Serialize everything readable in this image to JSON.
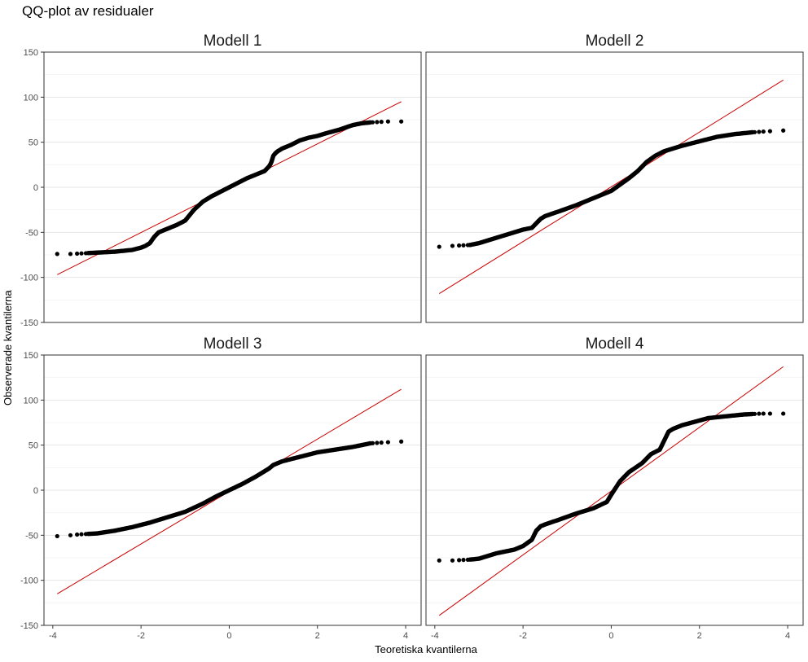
{
  "page": {
    "title": "QQ-plot av residualer",
    "xlabel": "Teoretiska kvantilerna",
    "ylabel": "Observerade kvantilerna"
  },
  "chart_data": [
    {
      "type": "scatter",
      "title": "Modell 1",
      "xlim": [
        -4.2,
        4.35
      ],
      "ylim": [
        -150,
        150
      ],
      "xticks": [
        -4,
        -2,
        0,
        2,
        4
      ],
      "yticks": [
        -150,
        -100,
        -50,
        0,
        50,
        100,
        150
      ],
      "xtick_labels": [
        "-4",
        "-2",
        "0",
        "2",
        "4"
      ],
      "ytick_labels": [
        "-150",
        "-100",
        "-50",
        "0",
        "50",
        "100",
        "150"
      ],
      "grid": true,
      "reference_line": {
        "color": "#cc0000",
        "x": [
          -3.9,
          3.9
        ],
        "y": [
          -97,
          95
        ]
      },
      "points_color": "#000000",
      "curve": {
        "x": [
          -3.9,
          -3.6,
          -3.4,
          -3.2,
          -3.0,
          -2.8,
          -2.6,
          -2.4,
          -2.2,
          -2.0,
          -1.9,
          -1.8,
          -1.7,
          -1.6,
          -1.5,
          -1.4,
          -1.3,
          -1.2,
          -1.0,
          -0.8,
          -0.6,
          -0.4,
          -0.2,
          0.0,
          0.2,
          0.4,
          0.6,
          0.8,
          0.9,
          0.95,
          1.0,
          1.05,
          1.1,
          1.2,
          1.4,
          1.6,
          1.8,
          2.0,
          2.2,
          2.5,
          2.8,
          3.0,
          3.2,
          3.4,
          3.6,
          3.9
        ],
        "y": [
          -74,
          -74,
          -73.5,
          -73,
          -72.5,
          -72,
          -71.5,
          -70.5,
          -69.5,
          -67,
          -65,
          -62,
          -55,
          -50,
          -48,
          -46,
          -44,
          -42,
          -37,
          -25,
          -16,
          -10,
          -5,
          0,
          5,
          10,
          14,
          18,
          23,
          27,
          35,
          38,
          40,
          43,
          47,
          52,
          55,
          57,
          60,
          64,
          69,
          71,
          72,
          72.5,
          73,
          73
        ]
      }
    },
    {
      "type": "scatter",
      "title": "Modell 2",
      "xlim": [
        -4.2,
        4.35
      ],
      "ylim": [
        -150,
        150
      ],
      "xticks": [
        -4,
        -2,
        0,
        2,
        4
      ],
      "yticks": [
        -150,
        -100,
        -50,
        0,
        50,
        100,
        150
      ],
      "grid": true,
      "reference_line": {
        "color": "#cc0000",
        "x": [
          -3.9,
          3.9
        ],
        "y": [
          -118,
          119
        ]
      },
      "points_color": "#000000",
      "curve": {
        "x": [
          -3.9,
          -3.6,
          -3.4,
          -3.2,
          -3.0,
          -2.8,
          -2.6,
          -2.4,
          -2.2,
          -2.0,
          -1.8,
          -1.7,
          -1.6,
          -1.5,
          -1.2,
          -0.8,
          -0.4,
          0.0,
          0.2,
          0.4,
          0.6,
          0.8,
          1.0,
          1.2,
          1.6,
          2.0,
          2.4,
          2.8,
          3.2,
          3.5,
          3.9
        ],
        "y": [
          -66,
          -65,
          -64.5,
          -64,
          -62,
          -59,
          -56,
          -53,
          -50,
          -47,
          -45,
          -40,
          -35,
          -32,
          -27,
          -20,
          -12,
          -4,
          3,
          10,
          18,
          28,
          35,
          40,
          46,
          51,
          56,
          59,
          61,
          62,
          63
        ]
      }
    },
    {
      "type": "scatter",
      "title": "Modell 3",
      "xlim": [
        -4.2,
        4.35
      ],
      "ylim": [
        -150,
        150
      ],
      "xticks": [
        -4,
        -2,
        0,
        2,
        4
      ],
      "yticks": [
        -150,
        -100,
        -50,
        0,
        50,
        100,
        150
      ],
      "grid": true,
      "reference_line": {
        "color": "#cc0000",
        "x": [
          -3.9,
          3.9
        ],
        "y": [
          -115,
          112
        ]
      },
      "points_color": "#000000",
      "curve": {
        "x": [
          -3.9,
          -3.6,
          -3.4,
          -3.2,
          -3.0,
          -2.6,
          -2.2,
          -1.8,
          -1.4,
          -1.0,
          -0.6,
          -0.3,
          0.0,
          0.3,
          0.6,
          0.9,
          1.0,
          1.2,
          1.6,
          2.0,
          2.4,
          2.8,
          3.2,
          3.5,
          3.9
        ],
        "y": [
          -51,
          -50,
          -49,
          -48.5,
          -48,
          -45,
          -41,
          -36,
          -30,
          -24,
          -15,
          -7,
          0,
          7,
          15,
          24,
          28,
          32,
          37,
          42,
          45,
          48,
          52,
          53,
          54
        ]
      }
    },
    {
      "type": "scatter",
      "title": "Modell 4",
      "xlim": [
        -4.2,
        4.35
      ],
      "ylim": [
        -150,
        150
      ],
      "xticks": [
        -4,
        -2,
        0,
        2,
        4
      ],
      "yticks": [
        -150,
        -100,
        -50,
        0,
        50,
        100,
        150
      ],
      "grid": true,
      "reference_line": {
        "color": "#cc0000",
        "x": [
          -3.9,
          3.9
        ],
        "y": [
          -139,
          137
        ]
      },
      "points_color": "#000000",
      "curve": {
        "x": [
          -3.9,
          -3.6,
          -3.4,
          -3.2,
          -3.0,
          -2.8,
          -2.6,
          -2.4,
          -2.2,
          -2.0,
          -1.8,
          -1.7,
          -1.6,
          -1.5,
          -1.2,
          -0.8,
          -0.4,
          -0.1,
          0.0,
          0.2,
          0.4,
          0.7,
          0.9,
          1.1,
          1.2,
          1.3,
          1.4,
          1.6,
          1.9,
          2.2,
          2.6,
          3.0,
          3.4,
          3.9
        ],
        "y": [
          -78,
          -78,
          -77.5,
          -77,
          -76,
          -73,
          -70,
          -68,
          -66,
          -62,
          -55,
          -45,
          -40,
          -38,
          -33,
          -26,
          -20,
          -13,
          -5,
          10,
          20,
          30,
          40,
          45,
          55,
          65,
          68,
          72,
          76,
          80,
          82,
          84,
          85,
          85
        ]
      }
    }
  ]
}
